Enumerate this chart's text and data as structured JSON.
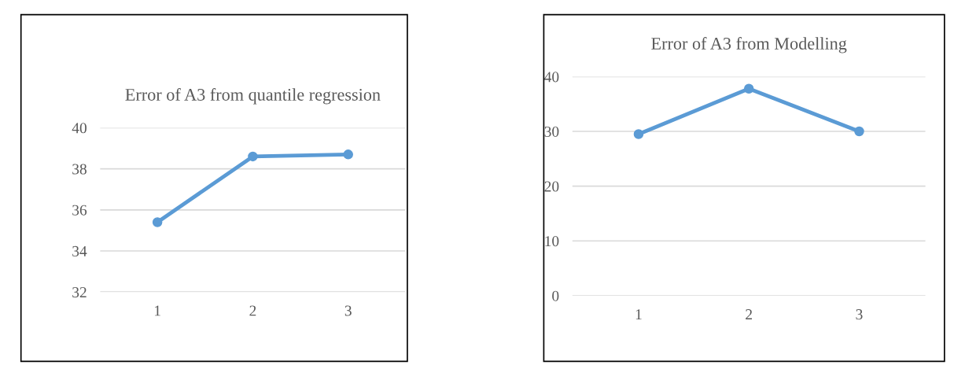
{
  "chart_data": [
    {
      "type": "line",
      "title": "Error of A3 from quantile regression",
      "categories": [
        "1",
        "2",
        "3"
      ],
      "series": [
        {
          "color": "#5b9bd5",
          "values": [
            35.4,
            38.6,
            38.7
          ]
        }
      ],
      "ylim": [
        32,
        40
      ],
      "yticks": [
        32,
        34,
        36,
        38,
        40
      ],
      "grid": "y",
      "marker": "circle",
      "line_style": "solid"
    },
    {
      "type": "line",
      "title": "Error of A3 from Modelling",
      "categories": [
        "1",
        "2",
        "3"
      ],
      "series": [
        {
          "color": "#5b9bd5",
          "values": [
            29.5,
            37.8,
            30
          ]
        }
      ],
      "ylim": [
        0,
        40
      ],
      "yticks": [
        0,
        10,
        20,
        30,
        40
      ],
      "grid": "y",
      "marker": "circle",
      "line_style": "solid"
    }
  ]
}
